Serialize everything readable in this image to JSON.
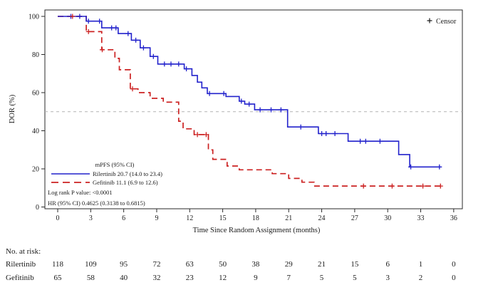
{
  "chart_data": {
    "type": "line",
    "subtype": "kaplan-meier-step",
    "title": "",
    "xlabel": "Time Since Random Assignment (months)",
    "ylabel": "DOR (%)",
    "xlim": [
      0,
      36
    ],
    "ylim": [
      0,
      100
    ],
    "x_ticks": [
      0,
      3,
      6,
      9,
      12,
      15,
      18,
      21,
      24,
      27,
      30,
      33,
      36
    ],
    "y_ticks": [
      0,
      20,
      40,
      60,
      80,
      100
    ],
    "grid": false,
    "reference_line_y": 50,
    "reference_line_color": "#b3b3b3",
    "censor_legend": "Censor",
    "legend_header": "mPFS (95% CI)",
    "series": [
      {
        "name": "Rilertinib",
        "label": "Rilertinib 20.7 (14.0 to 23.4)",
        "median_months": 20.7,
        "ci": "14.0 to 23.4",
        "color": "#2222cc",
        "style": "solid",
        "steps": [
          [
            0,
            100
          ],
          [
            2.6,
            97.5
          ],
          [
            4.0,
            94
          ],
          [
            5.5,
            91
          ],
          [
            6.7,
            87.5
          ],
          [
            7.5,
            83.5
          ],
          [
            8.4,
            79
          ],
          [
            9.1,
            75
          ],
          [
            11.5,
            72.5
          ],
          [
            12.2,
            69
          ],
          [
            12.7,
            65.5
          ],
          [
            13.1,
            62.5
          ],
          [
            13.6,
            59.5
          ],
          [
            15.3,
            58
          ],
          [
            16.5,
            55.5
          ],
          [
            17.0,
            54
          ],
          [
            17.9,
            51
          ],
          [
            20.9,
            42
          ],
          [
            23.7,
            38.5
          ],
          [
            26.4,
            34.5
          ],
          [
            31.0,
            27.5
          ],
          [
            32.0,
            21
          ],
          [
            34.8,
            21
          ]
        ],
        "censors": [
          [
            1.2,
            100
          ],
          [
            2.0,
            100
          ],
          [
            2.8,
            97.5
          ],
          [
            3.8,
            97.5
          ],
          [
            4.9,
            94
          ],
          [
            5.3,
            94
          ],
          [
            6.4,
            91
          ],
          [
            7.1,
            87.5
          ],
          [
            7.8,
            83.5
          ],
          [
            8.7,
            79
          ],
          [
            9.7,
            75
          ],
          [
            10.3,
            75
          ],
          [
            11.0,
            75
          ],
          [
            11.7,
            72.5
          ],
          [
            13.8,
            59.5
          ],
          [
            15.1,
            59.5
          ],
          [
            16.7,
            55.5
          ],
          [
            17.4,
            54
          ],
          [
            18.4,
            51
          ],
          [
            19.4,
            51
          ],
          [
            20.3,
            51
          ],
          [
            22.1,
            42
          ],
          [
            24.0,
            38.5
          ],
          [
            24.4,
            38.5
          ],
          [
            25.2,
            38.5
          ],
          [
            27.5,
            34.5
          ],
          [
            28.0,
            34.5
          ],
          [
            29.3,
            34.5
          ],
          [
            32.1,
            21
          ],
          [
            34.7,
            21
          ]
        ]
      },
      {
        "name": "Gefitinib",
        "label": "Gefitinib 11.1 (6.9 to 12.6)",
        "median_months": 11.1,
        "ci": "6.9 to 12.6",
        "color": "#cc2222",
        "style": "dashed",
        "steps": [
          [
            0,
            100
          ],
          [
            2.6,
            92
          ],
          [
            4.0,
            82.5
          ],
          [
            5.2,
            78
          ],
          [
            5.6,
            72
          ],
          [
            6.6,
            62
          ],
          [
            7.3,
            60
          ],
          [
            8.4,
            57
          ],
          [
            9.6,
            55
          ],
          [
            11.0,
            45
          ],
          [
            11.4,
            41
          ],
          [
            12.4,
            38
          ],
          [
            13.7,
            30
          ],
          [
            14.1,
            25
          ],
          [
            15.4,
            21.5
          ],
          [
            16.5,
            19.5
          ],
          [
            19.5,
            17.5
          ],
          [
            21.0,
            15
          ],
          [
            22.2,
            13
          ],
          [
            23.3,
            11
          ],
          [
            34.8,
            11
          ]
        ],
        "censors": [
          [
            1.35,
            100
          ],
          [
            2.8,
            92
          ],
          [
            4.05,
            82.5
          ],
          [
            6.8,
            62
          ],
          [
            12.7,
            38
          ],
          [
            13.5,
            38
          ],
          [
            27.8,
            11
          ],
          [
            30.4,
            11
          ],
          [
            33.2,
            11
          ],
          [
            34.8,
            11
          ]
        ]
      }
    ],
    "stats": [
      "Log rank P value: <0.0001",
      "HR (95% CI)  0.4625 (0.3138 to 0.6815)"
    ],
    "risk_table": {
      "header": "No. at risk:",
      "time_points": [
        0,
        3,
        6,
        9,
        12,
        15,
        18,
        21,
        24,
        27,
        30,
        33,
        36
      ],
      "rows": [
        {
          "name": "Rilertinib",
          "counts": [
            118,
            109,
            95,
            72,
            63,
            50,
            38,
            29,
            21,
            15,
            6,
            1,
            0
          ]
        },
        {
          "name": "Gefitinib",
          "counts": [
            65,
            58,
            40,
            32,
            23,
            12,
            9,
            7,
            5,
            5,
            3,
            2,
            0
          ]
        }
      ]
    }
  }
}
